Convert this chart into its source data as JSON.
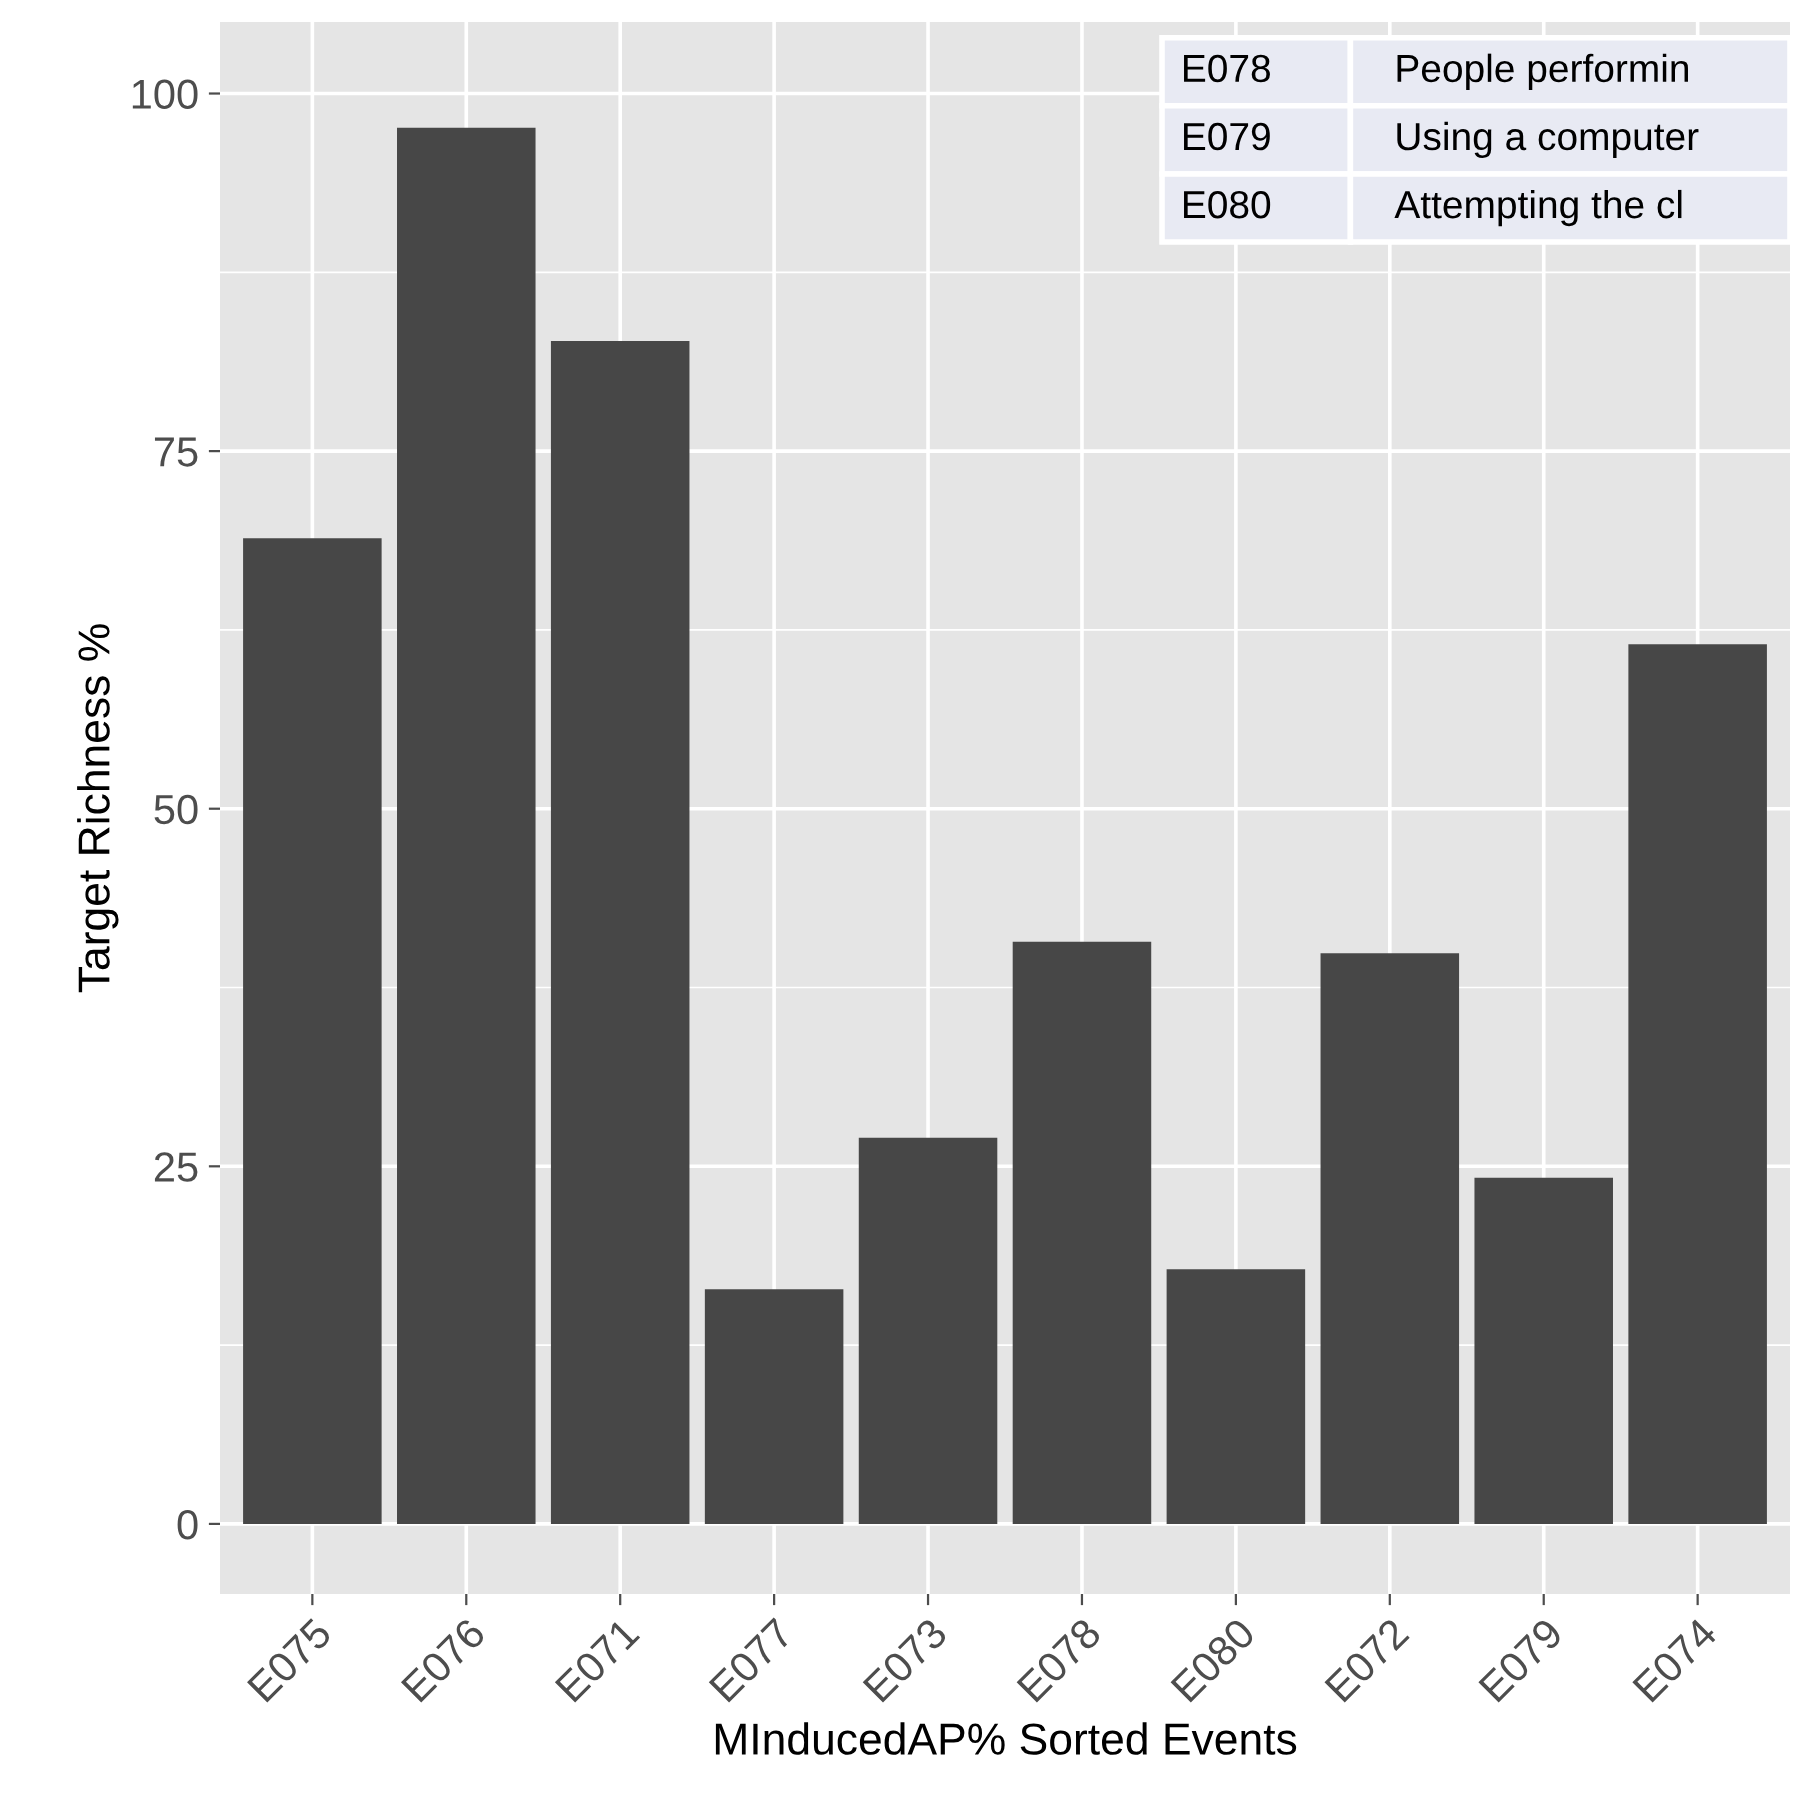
{
  "chart_data": {
    "type": "bar",
    "xlabel": "MInducedAP% Sorted Events",
    "ylabel": "Target Richness %",
    "categories": [
      "E075",
      "E076",
      "E071",
      "E077",
      "E073",
      "E078",
      "E080",
      "E072",
      "E079",
      "E074"
    ],
    "values": [
      68.9,
      97.6,
      82.7,
      16.4,
      27.0,
      40.7,
      17.8,
      39.9,
      24.2,
      61.5
    ],
    "color": "#474747",
    "ylim": [
      -4.9,
      105
    ],
    "yticks": [
      0,
      25,
      50,
      75,
      100
    ],
    "grid": true,
    "annotations": [
      "E078",
      "People performin",
      "E079",
      "Using a computer",
      "E080",
      "Attempting the cl"
    ]
  }
}
